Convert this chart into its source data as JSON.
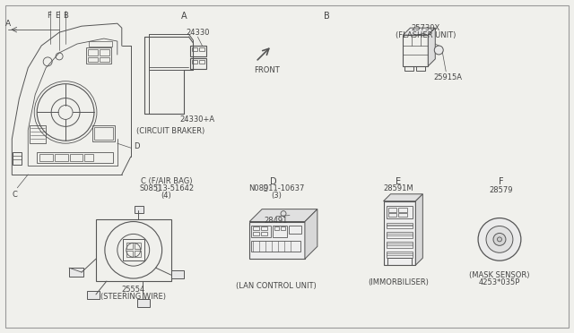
{
  "bg_color": "#f0f0ec",
  "line_color": "#555555",
  "text_color": "#444444",
  "part_24330": "24330",
  "part_24330A": "24330+A",
  "part_25730X": "25730X",
  "part_flasher": "(FLASHER UNIT)",
  "part_25915A": "25915A",
  "part_circuit": "(CIRCUIT BRAKER)",
  "part_C_label": "C (F/AIR BAG)",
  "part_C_num": "S08513-51642",
  "part_C_qty": "(4)",
  "part_25554": "25554",
  "part_steering": "(STEERING WIRE)",
  "part_D_num": "N08911-10637",
  "part_D_qty": "(3)",
  "part_28491": "28491",
  "part_lan": "(LAN CONTROL UNIT)",
  "part_28591M": "28591M",
  "part_immob": "(IMMORBILISER)",
  "part_28579": "28579",
  "part_mask": "(MASK SENSOR)",
  "part_code": "4253*035P",
  "front_label": "FRONT"
}
